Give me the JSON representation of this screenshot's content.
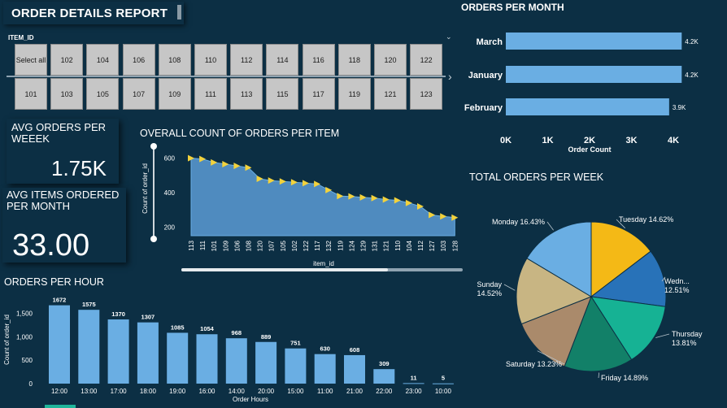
{
  "report_title": "ORDER DETAILS REPORT",
  "slicer": {
    "label": "ITEM_ID",
    "tiles_row1": [
      "Select all",
      "102",
      "104",
      "106",
      "108",
      "110",
      "112",
      "114",
      "116",
      "118",
      "120",
      "122"
    ],
    "tiles_row2": [
      "101",
      "103",
      "105",
      "107",
      "109",
      "111",
      "113",
      "115",
      "117",
      "119",
      "121",
      "123"
    ]
  },
  "kpi_week": {
    "label": "AVG ORDERS PER WEEEK",
    "value": "1.75K"
  },
  "kpi_month": {
    "label": "AVG ITEMS ORDERED PER MONTH",
    "value": "33.00"
  },
  "icons": {
    "slicer_dropdown": "chevron-down-icon",
    "slicer_next": "chevron-right-icon"
  },
  "colors": {
    "background": "#0c2f44",
    "bar": "#6aaee3",
    "area_fill": "#4f8bbf",
    "marker": "#f2d23c",
    "tile": "#c6c6c6"
  },
  "chart_data": [
    {
      "id": "orders_per_month",
      "type": "bar",
      "orientation": "horizontal",
      "title": "ORDERS PER MONTH",
      "xlabel": "Order Count",
      "ylabel": "",
      "categories": [
        "March",
        "January",
        "February"
      ],
      "values": [
        4200,
        4200,
        3900
      ],
      "data_labels": [
        "4.2K",
        "4.2K",
        "3.9K"
      ],
      "xlim": [
        0,
        4000
      ],
      "x_ticks": [
        "0K",
        "1K",
        "2K",
        "3K",
        "4K"
      ],
      "grid": false
    },
    {
      "id": "orders_per_item",
      "type": "area",
      "title": "OVERALL COUNT OF ORDERS PER ITEM",
      "xlabel": "item_id",
      "ylabel": "Count of order_id",
      "categories": [
        "113",
        "111",
        "101",
        "109",
        "106",
        "108",
        "120",
        "107",
        "105",
        "102",
        "122",
        "117",
        "132",
        "119",
        "124",
        "129",
        "131",
        "121",
        "110",
        "104",
        "112",
        "127",
        "103",
        "128"
      ],
      "values": [
        600,
        595,
        575,
        565,
        555,
        545,
        480,
        470,
        465,
        460,
        455,
        450,
        415,
        380,
        378,
        372,
        368,
        360,
        355,
        340,
        320,
        270,
        262,
        255
      ],
      "y_ticks": [
        "200",
        "400",
        "600"
      ],
      "ylim": [
        150,
        650
      ],
      "grid": false
    },
    {
      "id": "total_orders_per_week",
      "type": "pie",
      "title": "TOTAL ORDERS PER WEEK",
      "slices": [
        {
          "label": "Tuesday",
          "value": 14.62,
          "text": "Tuesday 14.62%",
          "color": "#f4b916"
        },
        {
          "label": "Wednesday",
          "value": 12.51,
          "text": "Wedn...",
          "text2": "12.51%",
          "color": "#2872b8"
        },
        {
          "label": "Thursday",
          "value": 13.81,
          "text": "Thursday",
          "text2": "13.81%",
          "color": "#16b294"
        },
        {
          "label": "Friday",
          "value": 14.89,
          "text": "Friday 14.89%",
          "color": "#128068"
        },
        {
          "label": "Saturday",
          "value": 13.23,
          "text": "Saturday 13.23%",
          "color": "#aa8a6b"
        },
        {
          "label": "Sunday",
          "value": 14.52,
          "text": "Sunday",
          "text2": "14.52%",
          "color": "#c8b583"
        },
        {
          "label": "Monday",
          "value": 16.43,
          "text": "Monday 16.43%",
          "color": "#6aaee3"
        }
      ]
    },
    {
      "id": "orders_per_hour",
      "type": "bar",
      "orientation": "vertical",
      "title": "ORDERS PER HOUR",
      "xlabel": "Order Hours",
      "ylabel": "Count of order_id",
      "categories": [
        "12:00",
        "13:00",
        "17:00",
        "18:00",
        "19:00",
        "16:00",
        "14:00",
        "20:00",
        "15:00",
        "11:00",
        "21:00",
        "22:00",
        "23:00",
        "10:00"
      ],
      "values": [
        1672,
        1575,
        1370,
        1307,
        1085,
        1054,
        968,
        889,
        751,
        630,
        608,
        309,
        11,
        5
      ],
      "y_ticks": [
        "0",
        "500",
        "1,000",
        "1,500"
      ],
      "ylim": [
        0,
        1700
      ],
      "grid": false
    }
  ]
}
